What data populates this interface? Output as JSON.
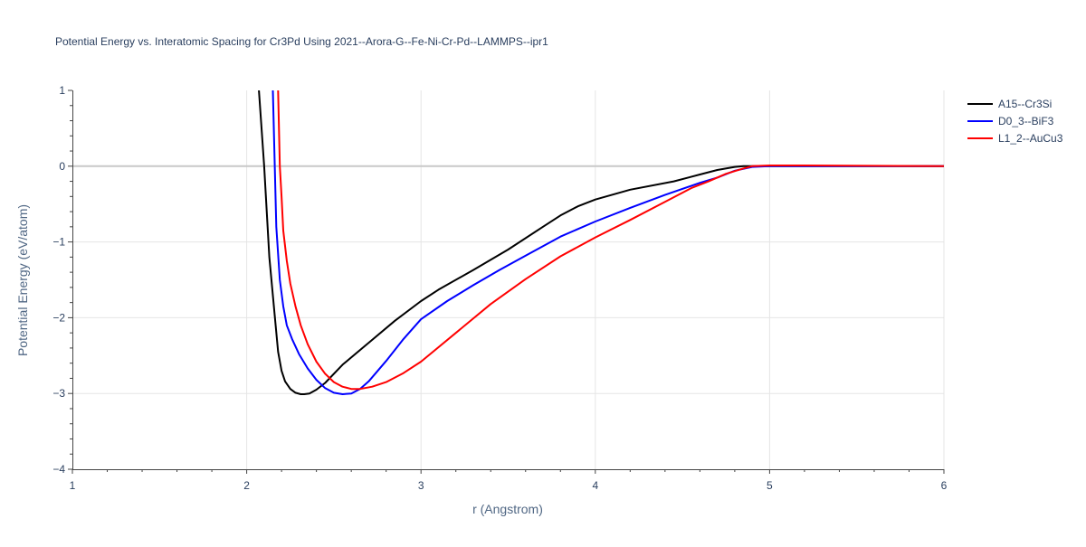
{
  "chart_data": {
    "type": "line",
    "title": "Potential Energy vs. Interatomic Spacing for Cr3Pd Using 2021--Arora-G--Fe-Ni-Cr-Pd--LAMMPS--ipr1",
    "xlabel": "r (Angstrom)",
    "ylabel": "Potential Energy (eV/atom)",
    "xlim": [
      1,
      6
    ],
    "ylim": [
      -4,
      1
    ],
    "x_ticks": [
      1,
      2,
      3,
      4,
      5,
      6
    ],
    "x_tick_labels": [
      "1",
      "2",
      "3",
      "4",
      "5",
      "6"
    ],
    "y_ticks": [
      1,
      0,
      -1,
      -2,
      -3,
      -4
    ],
    "y_tick_labels": [
      "1",
      "0",
      "−1",
      "−2",
      "−3",
      "−4"
    ],
    "grid": true,
    "legend_position": "top-right",
    "series": [
      {
        "name": "A15--Cr3Si",
        "color": "#000000",
        "x": [
          2.07,
          2.1,
          2.13,
          2.16,
          2.18,
          2.2,
          2.22,
          2.25,
          2.28,
          2.31,
          2.33,
          2.36,
          2.4,
          2.45,
          2.55,
          2.7,
          2.85,
          3.0,
          3.1,
          3.3,
          3.5,
          3.7,
          3.8,
          3.9,
          4.0,
          4.2,
          4.45,
          4.6,
          4.7,
          4.8,
          4.85,
          4.9,
          5.0,
          5.2,
          6.0
        ],
        "y": [
          1.0,
          0.0,
          -1.2,
          -1.95,
          -2.45,
          -2.7,
          -2.84,
          -2.94,
          -2.99,
          -3.01,
          -3.01,
          -3.0,
          -2.95,
          -2.86,
          -2.62,
          -2.33,
          -2.04,
          -1.78,
          -1.63,
          -1.37,
          -1.1,
          -0.8,
          -0.65,
          -0.53,
          -0.44,
          -0.31,
          -0.2,
          -0.11,
          -0.05,
          -0.01,
          0.0,
          0.0,
          0.0,
          0.0,
          0.0
        ]
      },
      {
        "name": "D0_3--BiF3",
        "color": "#0000ff",
        "x": [
          2.15,
          2.17,
          2.19,
          2.21,
          2.23,
          2.26,
          2.3,
          2.35,
          2.4,
          2.45,
          2.5,
          2.55,
          2.6,
          2.65,
          2.7,
          2.8,
          2.9,
          3.0,
          3.15,
          3.3,
          3.45,
          3.6,
          3.8,
          4.0,
          4.2,
          4.4,
          4.6,
          4.7,
          4.8,
          4.9,
          5.0,
          5.2,
          6.0
        ],
        "y": [
          1.0,
          -0.8,
          -1.5,
          -1.85,
          -2.1,
          -2.28,
          -2.48,
          -2.67,
          -2.82,
          -2.93,
          -2.99,
          -3.01,
          -3.0,
          -2.94,
          -2.84,
          -2.57,
          -2.28,
          -2.02,
          -1.78,
          -1.57,
          -1.37,
          -1.18,
          -0.93,
          -0.73,
          -0.55,
          -0.38,
          -0.22,
          -0.15,
          -0.06,
          -0.01,
          0.0,
          0.0,
          0.0
        ]
      },
      {
        "name": "L1_2--AuCu3",
        "color": "#ff0000",
        "x": [
          2.18,
          2.19,
          2.2,
          2.21,
          2.23,
          2.25,
          2.28,
          2.31,
          2.35,
          2.4,
          2.45,
          2.5,
          2.55,
          2.6,
          2.65,
          2.72,
          2.8,
          2.9,
          3.0,
          3.2,
          3.4,
          3.6,
          3.8,
          4.0,
          4.2,
          4.4,
          4.55,
          4.65,
          4.75,
          4.85,
          4.9,
          5.0,
          5.2,
          6.0
        ],
        "y": [
          1.0,
          0.0,
          -0.4,
          -0.85,
          -1.25,
          -1.55,
          -1.85,
          -2.1,
          -2.35,
          -2.58,
          -2.74,
          -2.85,
          -2.91,
          -2.94,
          -2.94,
          -2.91,
          -2.85,
          -2.73,
          -2.58,
          -2.2,
          -1.82,
          -1.49,
          -1.19,
          -0.94,
          -0.71,
          -0.47,
          -0.29,
          -0.2,
          -0.1,
          -0.03,
          0.0,
          0.01,
          0.01,
          0.0
        ]
      }
    ]
  }
}
